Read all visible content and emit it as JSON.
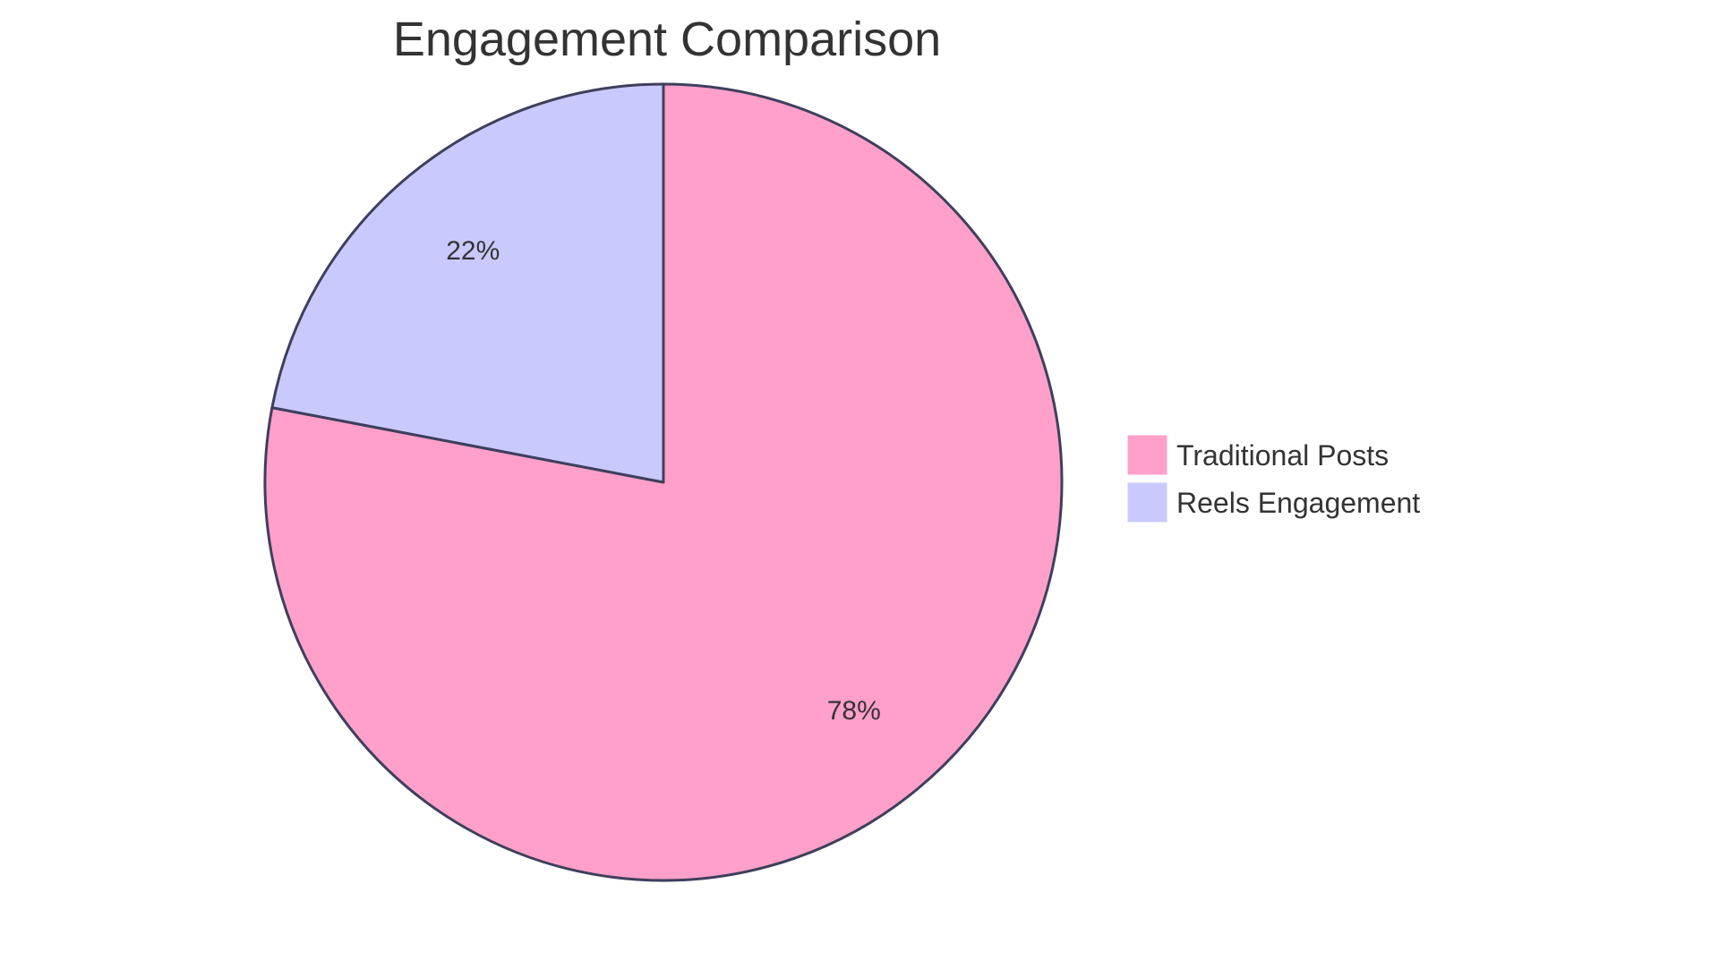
{
  "chart_data": {
    "type": "pie",
    "title": "Engagement Comparison",
    "categories": [
      "Traditional Posts",
      "Reels Engagement"
    ],
    "values": [
      78,
      22
    ],
    "labels": [
      "78%",
      "22%"
    ],
    "colors": [
      "#FFA0CB",
      "#C9C9FD"
    ],
    "stroke_color": "#3E3F5C",
    "legend": {
      "position": "right",
      "entries": [
        "Traditional Posts",
        "Reels Engagement"
      ]
    }
  },
  "title": "Engagement Comparison",
  "slices": [
    {
      "name": "Traditional Posts",
      "label": "78%"
    },
    {
      "name": "Reels Engagement",
      "label": "22%"
    }
  ],
  "legend": {
    "items": [
      {
        "label": "Traditional Posts"
      },
      {
        "label": "Reels Engagement"
      }
    ]
  }
}
